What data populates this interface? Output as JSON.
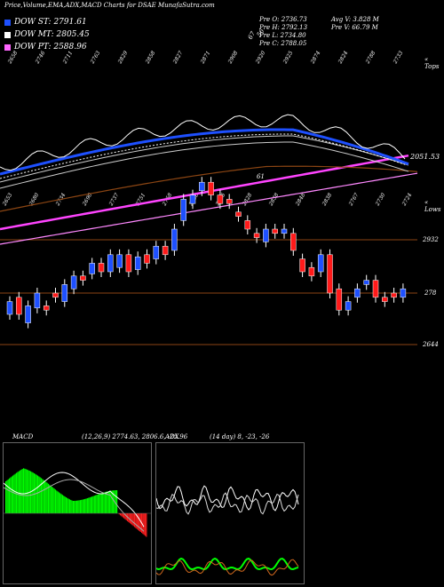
{
  "header": {
    "title": "Price,Volume,EMA,ADX,MACD Charts for DSAE MunafaSutra.com"
  },
  "legend": [
    {
      "label": "DOW ST: 2791.61",
      "color": "#1e50ff"
    },
    {
      "label": "DOW MT: 2805.45",
      "color": "#ffffff"
    },
    {
      "label": "DOW PT: 2588.96",
      "color": "#ff66ff"
    }
  ],
  "stats": {
    "open": "Pre   O: 2736.73",
    "high": "Pre   H: 2792.13",
    "low": "Pre   L: 2734.80",
    "close": "Pre   C: 2788.05",
    "avg_vol": "Avg V: 3.828 M",
    "pre_vol": "Pre   V: 66.79 M"
  },
  "top_labels": {
    "vol_a": "67",
    "vol_b": "56",
    "upper_right": "« Tops",
    "lower_right": "« Lows",
    "ema_value": "2051.53",
    "ema_mark": "61"
  },
  "price_labels": {
    "level1": "2932",
    "level2": "278",
    "level3": "2644"
  },
  "macd": {
    "label": "MACD",
    "params": "(12,26,9) 2774.63,  2806.6, -25.96"
  },
  "adx": {
    "label": "ADX",
    "params": "(14  day) 8,  -23,  -26"
  },
  "colors": {
    "up": "#1e50ff",
    "down": "#ff1a1a",
    "ema_st": "#1e50ff",
    "ema_pt": "#ff44ff",
    "ema_lt": "#8b4513",
    "hline": "#8b4513",
    "macd_hist": "#00ff00",
    "macd_neg": "#ff2020"
  },
  "chart_data": {
    "type": "candlestick",
    "series": [
      {
        "name": "DOW ST",
        "value": 2791.61
      },
      {
        "name": "DOW MT",
        "value": 2805.45
      },
      {
        "name": "DOW PT",
        "value": 2588.96
      }
    ],
    "tops": [
      "2658",
      "2746",
      "2711",
      "2763",
      "2829",
      "2858",
      "2827",
      "2871",
      "2908",
      "2920",
      "2925",
      "2874",
      "2824",
      "2788",
      "2733"
    ],
    "lows": [
      "2653",
      "2680",
      "2734",
      "2690",
      "2737",
      "2751",
      "2758",
      "2698",
      "2856",
      "2828",
      "2838",
      "2848",
      "2838",
      "2767",
      "2730",
      "2724"
    ],
    "candles": [
      {
        "o": 2600,
        "c": 2630,
        "up": true
      },
      {
        "o": 2640,
        "c": 2600,
        "up": false
      },
      {
        "o": 2580,
        "c": 2620,
        "up": true
      },
      {
        "o": 2615,
        "c": 2650,
        "up": true
      },
      {
        "o": 2620,
        "c": 2610,
        "up": false
      },
      {
        "o": 2650,
        "c": 2640,
        "up": false
      },
      {
        "o": 2630,
        "c": 2670,
        "up": true
      },
      {
        "o": 2660,
        "c": 2690,
        "up": true
      },
      {
        "o": 2690,
        "c": 2680,
        "up": false
      },
      {
        "o": 2695,
        "c": 2720,
        "up": true
      },
      {
        "o": 2720,
        "c": 2700,
        "up": false
      },
      {
        "o": 2700,
        "c": 2740,
        "up": true
      },
      {
        "o": 2710,
        "c": 2740,
        "up": true
      },
      {
        "o": 2740,
        "c": 2700,
        "up": false
      },
      {
        "o": 2705,
        "c": 2735,
        "up": true
      },
      {
        "o": 2740,
        "c": 2720,
        "up": false
      },
      {
        "o": 2730,
        "c": 2760,
        "up": true
      },
      {
        "o": 2760,
        "c": 2740,
        "up": false
      },
      {
        "o": 2750,
        "c": 2800,
        "up": true
      },
      {
        "o": 2820,
        "c": 2870,
        "up": true
      },
      {
        "o": 2860,
        "c": 2880,
        "up": true
      },
      {
        "o": 2890,
        "c": 2910,
        "up": true
      },
      {
        "o": 2910,
        "c": 2880,
        "up": false
      },
      {
        "o": 2880,
        "c": 2860,
        "up": false
      },
      {
        "o": 2870,
        "c": 2860,
        "up": false
      },
      {
        "o": 2840,
        "c": 2830,
        "up": false
      },
      {
        "o": 2820,
        "c": 2800,
        "up": false
      },
      {
        "o": 2790,
        "c": 2780,
        "up": false
      },
      {
        "o": 2770,
        "c": 2800,
        "up": true
      },
      {
        "o": 2800,
        "c": 2790,
        "up": false
      },
      {
        "o": 2790,
        "c": 2800,
        "up": true
      },
      {
        "o": 2790,
        "c": 2750,
        "up": false
      },
      {
        "o": 2730,
        "c": 2700,
        "up": false
      },
      {
        "o": 2710,
        "c": 2690,
        "up": false
      },
      {
        "o": 2700,
        "c": 2740,
        "up": true
      },
      {
        "o": 2740,
        "c": 2650,
        "up": false
      },
      {
        "o": 2660,
        "c": 2610,
        "up": false
      },
      {
        "o": 2610,
        "c": 2630,
        "up": true
      },
      {
        "o": 2640,
        "c": 2660,
        "up": true
      },
      {
        "o": 2670,
        "c": 2680,
        "up": true
      },
      {
        "o": 2680,
        "c": 2640,
        "up": false
      },
      {
        "o": 2640,
        "c": 2630,
        "up": false
      },
      {
        "o": 2650,
        "c": 2640,
        "up": false
      },
      {
        "o": 2640,
        "c": 2660,
        "up": true
      }
    ]
  }
}
